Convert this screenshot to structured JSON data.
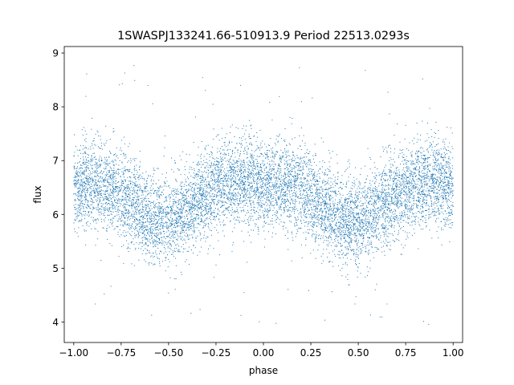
{
  "chart_data": {
    "type": "scatter",
    "title": "1SWASPJ133241.66-510913.9 Period 22513.0293s",
    "xlabel": "phase",
    "ylabel": "flux",
    "xlim": [
      -1.05,
      1.05
    ],
    "ylim": [
      3.62,
      9.12
    ],
    "xticks": [
      -1.0,
      -0.75,
      -0.5,
      -0.25,
      0.0,
      0.25,
      0.5,
      0.75,
      1.0
    ],
    "xtick_labels": [
      "−1.00",
      "−0.75",
      "−0.50",
      "−0.25",
      "0.00",
      "0.25",
      "0.50",
      "0.75",
      "1.00"
    ],
    "yticks": [
      4,
      5,
      6,
      7,
      8,
      9
    ],
    "ytick_labels": [
      "4",
      "5",
      "6",
      "7",
      "8",
      "9"
    ],
    "grid": false,
    "legend": "none",
    "marker_color": "#1f77b4",
    "series": [
      {
        "x": [
          -1.0,
          -0.9,
          -0.8,
          -0.7,
          -0.6,
          -0.5,
          -0.4,
          -0.3,
          -0.2,
          -0.1,
          0.0,
          0.1,
          0.2,
          0.3,
          0.4,
          0.5,
          0.6,
          0.7,
          0.8,
          0.9,
          1.0
        ],
        "y": [
          6.52,
          6.55,
          6.45,
          6.2,
          5.95,
          5.85,
          6.05,
          6.42,
          6.6,
          6.62,
          6.55,
          6.55,
          6.48,
          6.2,
          5.9,
          5.85,
          6.05,
          6.38,
          6.55,
          6.6,
          6.55
        ],
        "spread": 0.4
      }
    ]
  }
}
